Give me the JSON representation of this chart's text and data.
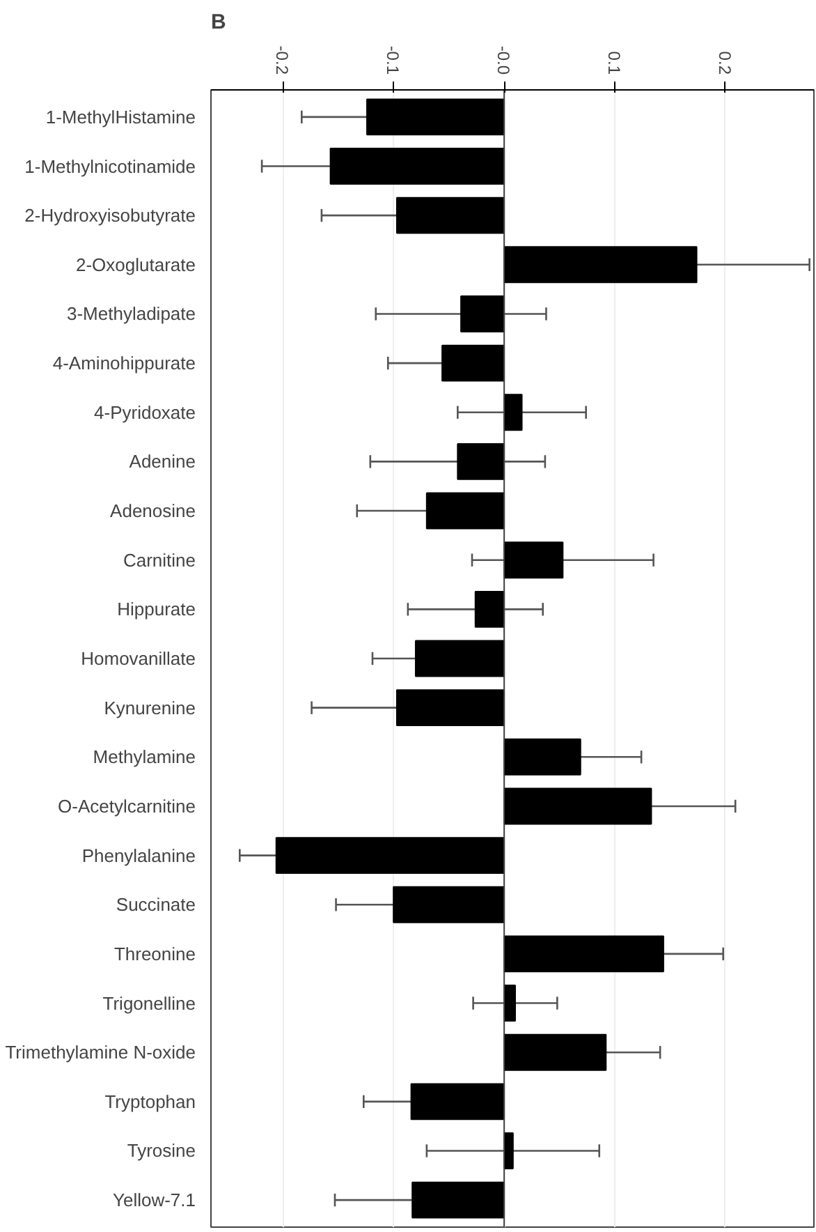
{
  "chart_data": {
    "type": "bar",
    "orientation": "horizontal",
    "title": "B",
    "categories": [
      "1-MethylHistamine",
      "1-Methylnicotinamide",
      "2-Hydroxyisobutyrate",
      "2-Oxoglutarate",
      "3-Methyladipate",
      "4-Aminohippurate",
      "4-Pyridoxate",
      "Adenine",
      "Adenosine",
      "Carnitine",
      "Hippurate",
      "Homovanillate",
      "Kynurenine",
      "Methylamine",
      "O-Acetylcarnitine",
      "Phenylalanine",
      "Succinate",
      "Threonine",
      "Trigonelline",
      "Trimethylamine N-oxide",
      "Tryptophan",
      "Tyrosine",
      "Yellow-7.1"
    ],
    "values": [
      -0.124,
      -0.157,
      -0.097,
      0.174,
      -0.039,
      -0.056,
      0.016,
      -0.042,
      -0.07,
      0.053,
      -0.026,
      -0.08,
      -0.097,
      0.069,
      0.133,
      -0.206,
      -0.1,
      0.144,
      0.01,
      0.092,
      -0.084,
      0.008,
      -0.083
    ],
    "errors": [
      0.059,
      0.062,
      0.068,
      0.102,
      0.077,
      0.049,
      0.058,
      0.079,
      0.063,
      0.082,
      0.061,
      0.039,
      0.077,
      0.055,
      0.076,
      0.033,
      0.052,
      0.054,
      0.038,
      0.049,
      0.043,
      0.078,
      0.07
    ],
    "color": "#000000",
    "xlim": [
      -0.265,
      0.28
    ],
    "xticks": [
      -0.2,
      -0.1,
      {
        "value": 0,
        "label": "-0.0"
      },
      0.1,
      0.2
    ],
    "grid": "x"
  }
}
